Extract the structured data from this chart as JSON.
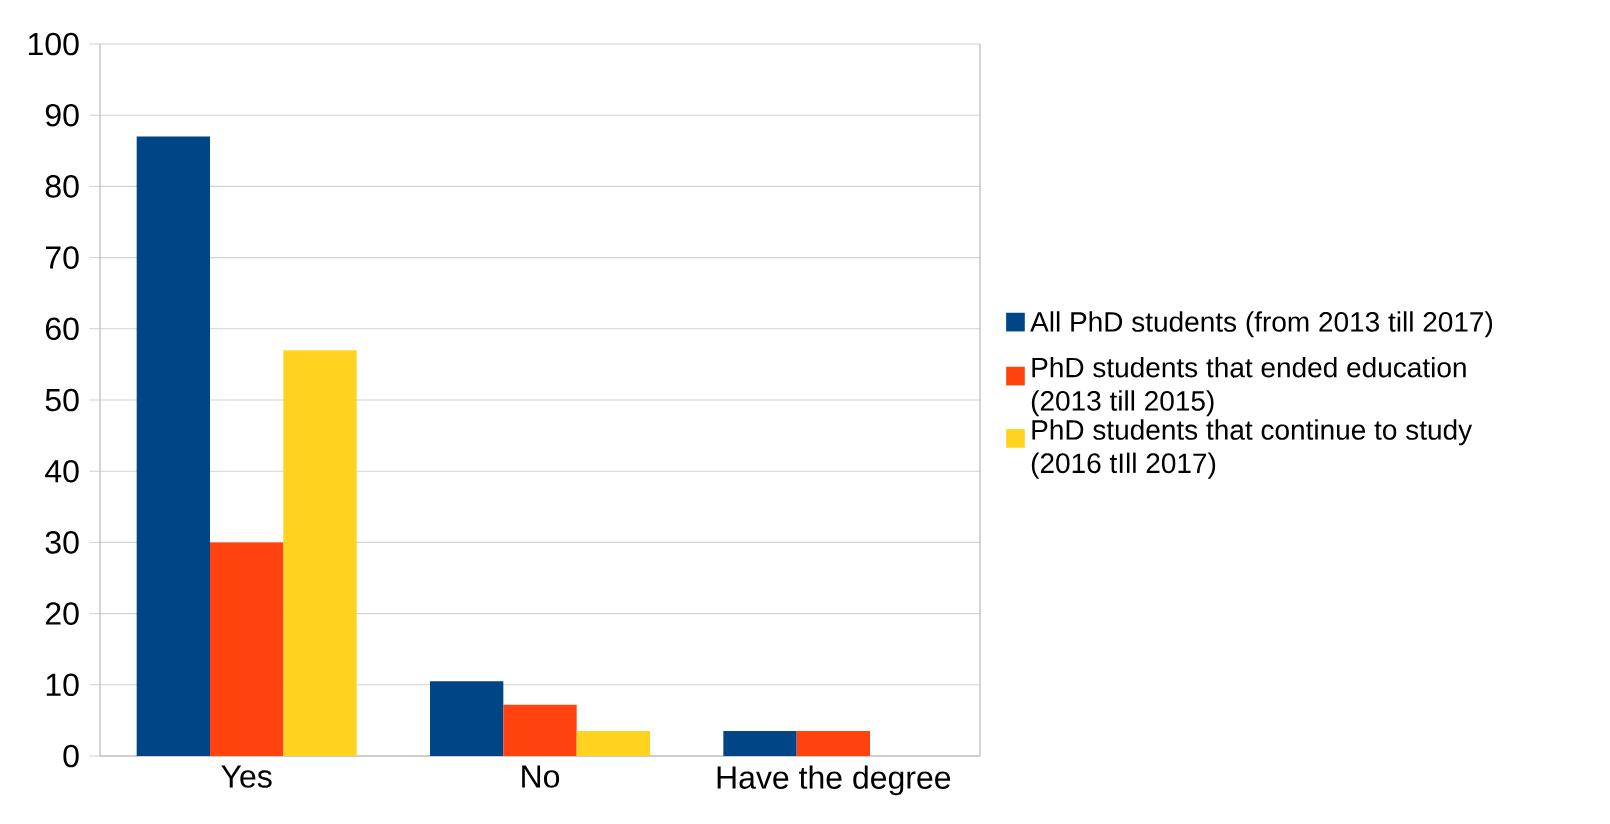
{
  "chart_data": {
    "type": "bar",
    "categories": [
      "Yes",
      "No",
      "Have the degree"
    ],
    "series": [
      {
        "name": "All PhD students (from 2013 till 2017)",
        "color": "#004586",
        "values": [
          87,
          10.5,
          3.5
        ]
      },
      {
        "name": "PhD students that ended education (2013 till 2015)",
        "color": "#ff420e",
        "values": [
          30,
          7.2,
          3.5
        ]
      },
      {
        "name": "PhD students that continue to study (2016 tIll 2017)",
        "color": "#ffd320",
        "values": [
          57,
          3.5,
          null
        ]
      }
    ],
    "ylim": [
      0,
      100
    ],
    "yticks": [
      0,
      10,
      20,
      30,
      40,
      50,
      60,
      70,
      80,
      90,
      100
    ],
    "grid": "y",
    "legend": "right"
  }
}
